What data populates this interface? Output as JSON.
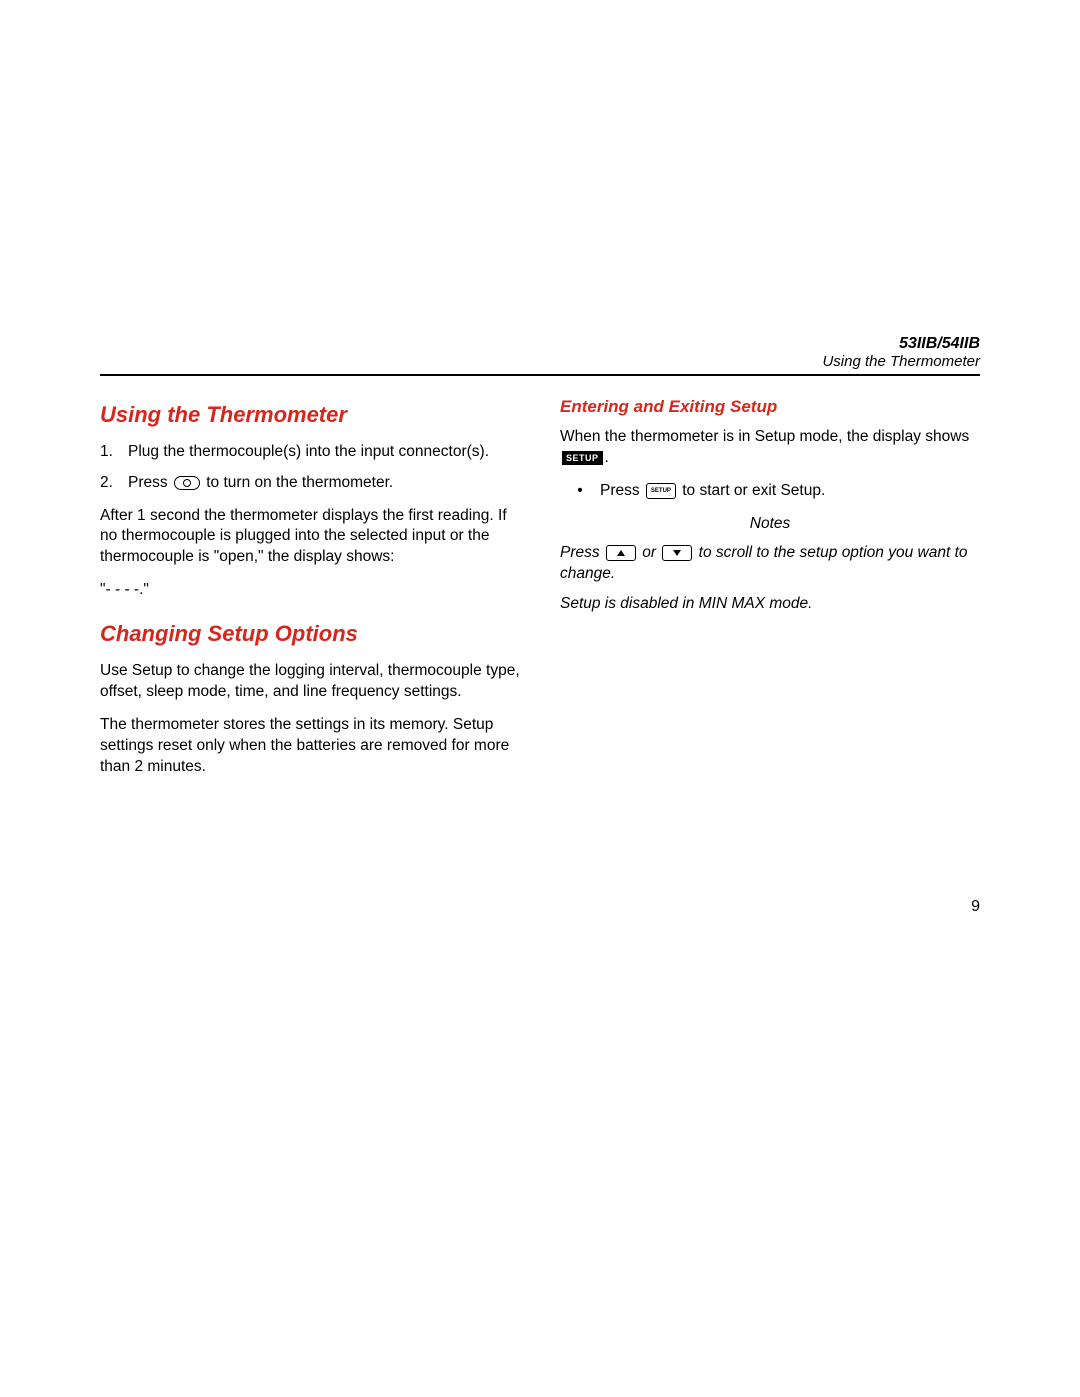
{
  "header": {
    "model": "53IIB/54IIB",
    "subtitle": "Using the Thermometer"
  },
  "left": {
    "h1": "Using the Thermometer",
    "steps": [
      "Plug the thermocouple(s) into the input connector(s).",
      "to turn on the thermometer."
    ],
    "step2_prefix": "Press",
    "after_para": "After 1 second the thermometer displays the first reading. If no thermocouple is plugged into the selected input or the thermocouple is \"open,\" the display shows:",
    "dashes": "\"- - - -.\"",
    "h2": "Changing Setup Options",
    "p1": "Use Setup to change the logging interval, thermocouple type, offset, sleep mode, time, and line frequency settings.",
    "p2": "The thermometer stores the settings in its memory. Setup settings reset only when the batteries are removed for more than 2 minutes."
  },
  "right": {
    "h2": "Entering and Exiting Setup",
    "intro_a": "When the thermometer is in Setup mode, the display shows",
    "intro_badge": "SETUP",
    "intro_b": ".",
    "bullet_prefix": "Press",
    "bullet_suffix": "to start or exit Setup.",
    "notes_label": "Notes",
    "note1_a": "Press",
    "note1_mid": "or",
    "note1_b": "to scroll to the setup option you want to change.",
    "note2": "Setup is disabled in MIN MAX mode."
  },
  "page_number": "9",
  "colors": {
    "heading": "#d7261c",
    "text": "#000000",
    "rule": "#000000",
    "background": "#ffffff"
  },
  "icons": {
    "power": "oval-power-button",
    "setup_badge": "black-setup-badge",
    "setup_button": "rect-setup-button",
    "up": "rect-up-arrow-button",
    "down": "rect-down-arrow-button"
  }
}
